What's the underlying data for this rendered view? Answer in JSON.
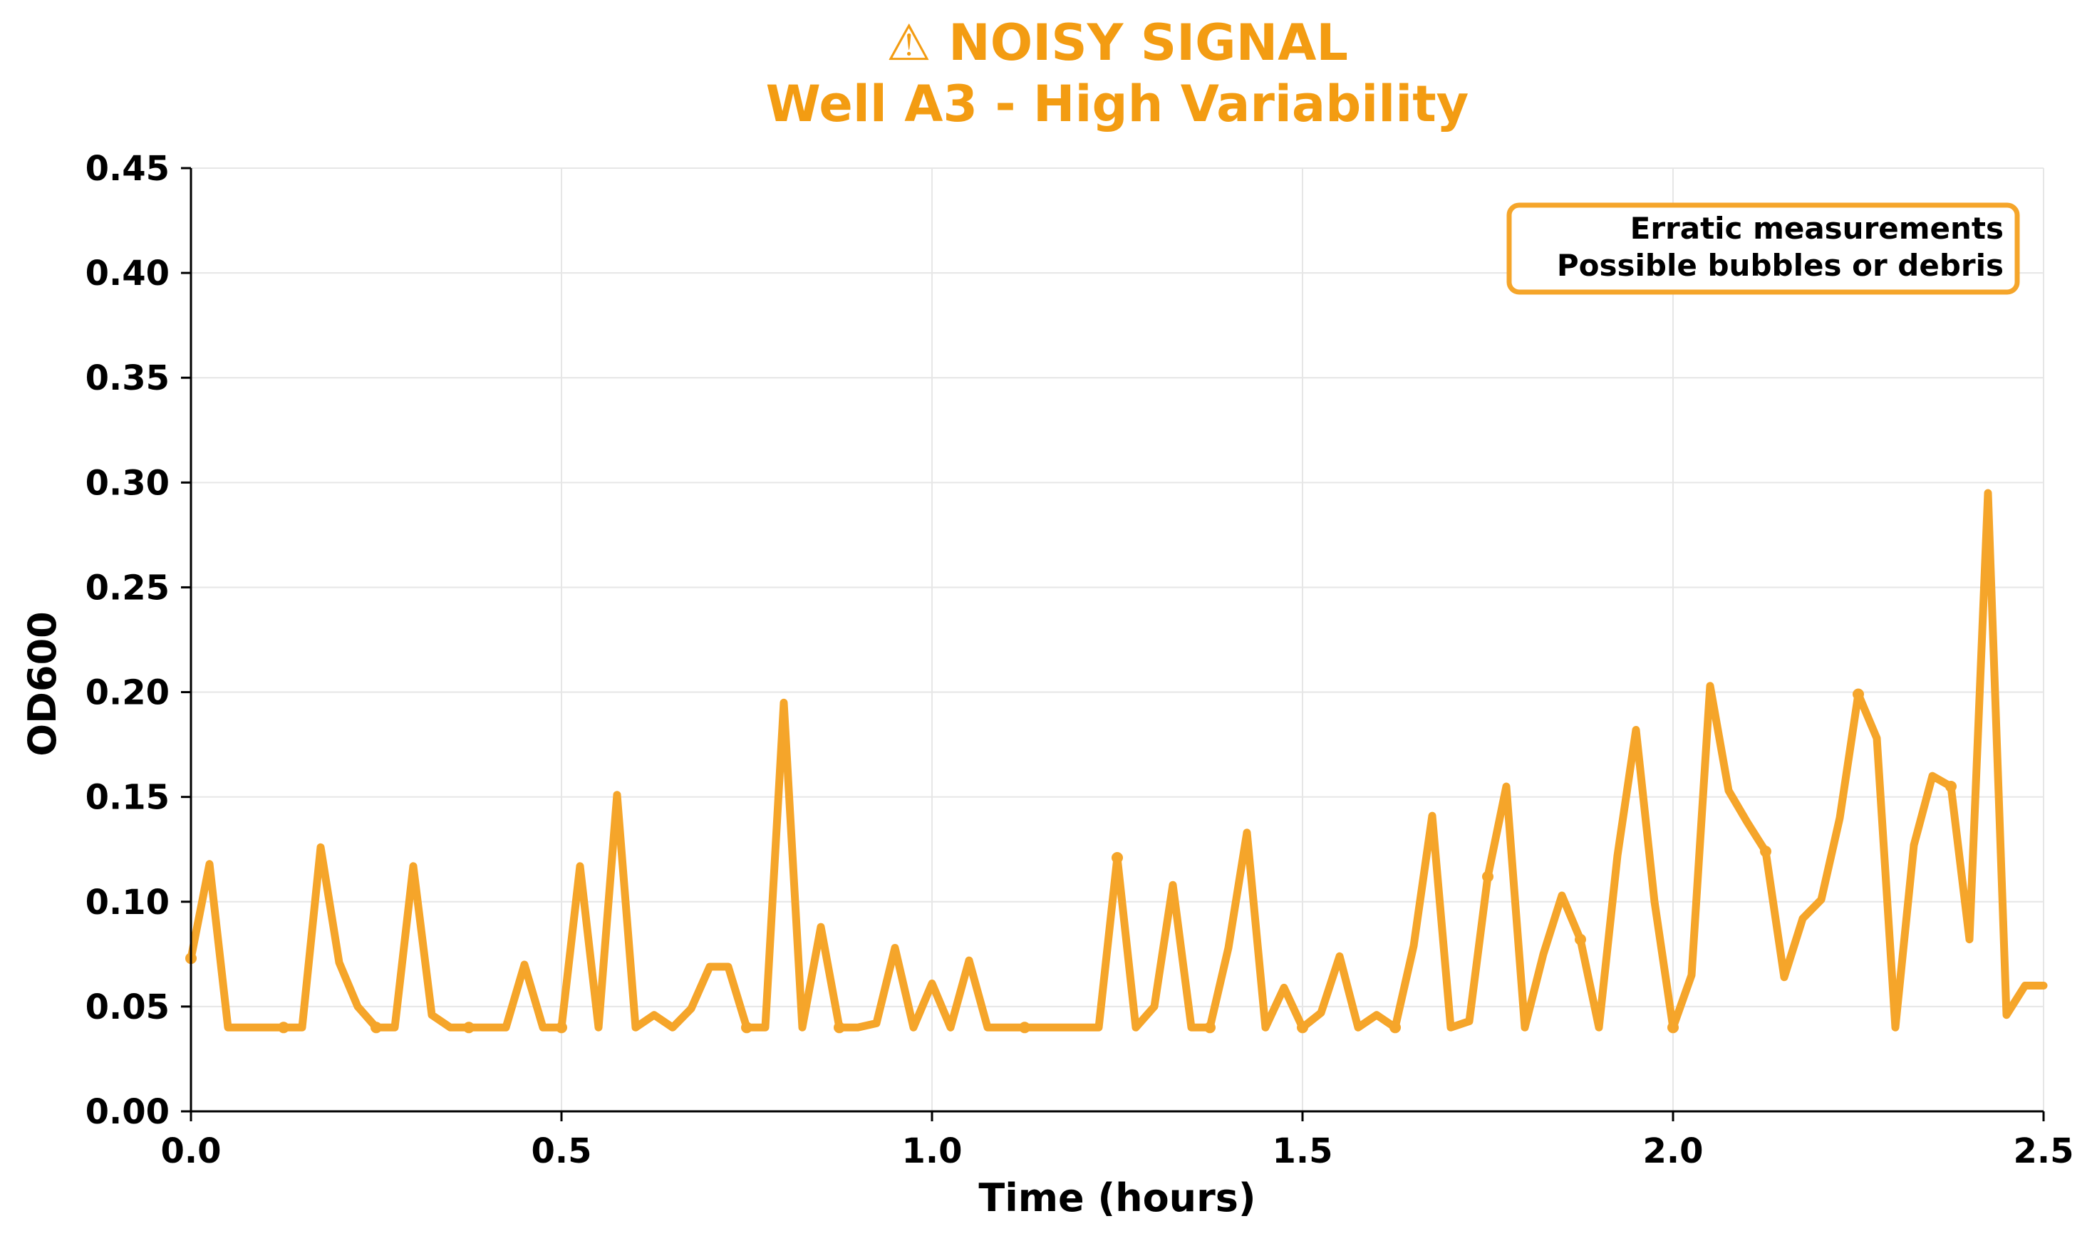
{
  "colors": {
    "line": "#F5A52A",
    "title": "#F39C12",
    "grid": "#e6e6e6",
    "annotation_border": "#F5A52A"
  },
  "chart_data": {
    "type": "line",
    "title_line1": "⚠ NOISY SIGNAL",
    "title_line2": "Well A3 - High Variability",
    "xlabel": "Time (hours)",
    "ylabel": "OD600",
    "xlim": [
      0,
      2.5
    ],
    "ylim": [
      0,
      0.45
    ],
    "xticks": [
      0,
      0.5,
      1.0,
      1.5,
      2.0,
      2.5
    ],
    "xtick_labels": [
      "0.0",
      "0.5",
      "1.0",
      "1.5",
      "2.0",
      "2.5"
    ],
    "yticks": [
      0,
      0.05,
      0.1,
      0.15,
      0.2,
      0.25,
      0.3,
      0.35,
      0.4,
      0.45
    ],
    "ytick_labels": [
      "0.00",
      "0.05",
      "0.10",
      "0.15",
      "0.20",
      "0.25",
      "0.30",
      "0.35",
      "0.40",
      "0.45"
    ],
    "grid": true,
    "annotation": {
      "lines": [
        "Erratic measurements",
        "Possible bubbles or debris"
      ],
      "placement": "top-right"
    },
    "x": [
      0.0,
      0.025,
      0.05,
      0.075,
      0.1,
      0.125,
      0.15,
      0.175,
      0.2,
      0.225,
      0.25,
      0.275,
      0.3,
      0.325,
      0.35,
      0.375,
      0.4,
      0.425,
      0.45,
      0.475,
      0.5,
      0.525,
      0.55,
      0.575,
      0.6,
      0.625,
      0.65,
      0.675,
      0.7,
      0.725,
      0.75,
      0.775,
      0.8,
      0.825,
      0.85,
      0.875,
      0.9,
      0.925,
      0.95,
      0.975,
      1.0,
      1.025,
      1.05,
      1.075,
      1.1,
      1.125,
      1.15,
      1.175,
      1.2,
      1.225,
      1.25,
      1.275,
      1.3,
      1.325,
      1.35,
      1.375,
      1.4,
      1.425,
      1.45,
      1.475,
      1.5,
      1.525,
      1.55,
      1.575,
      1.6,
      1.625,
      1.65,
      1.675,
      1.7,
      1.725,
      1.75,
      1.775,
      1.8,
      1.825,
      1.85,
      1.875,
      1.9,
      1.925,
      1.95,
      1.975,
      2.0,
      2.025,
      2.05,
      2.075,
      2.1,
      2.125,
      2.15,
      2.175,
      2.2,
      2.225,
      2.25,
      2.275,
      2.3,
      2.325,
      2.35,
      2.375,
      2.4,
      2.425,
      2.45,
      2.475,
      2.5
    ],
    "y": [
      0.073,
      0.118,
      0.04,
      0.04,
      0.04,
      0.04,
      0.04,
      0.126,
      0.071,
      0.05,
      0.04,
      0.04,
      0.117,
      0.046,
      0.04,
      0.04,
      0.04,
      0.04,
      0.07,
      0.04,
      0.04,
      0.117,
      0.04,
      0.151,
      0.04,
      0.046,
      0.04,
      0.049,
      0.069,
      0.069,
      0.04,
      0.04,
      0.195,
      0.04,
      0.088,
      0.04,
      0.04,
      0.042,
      0.078,
      0.04,
      0.061,
      0.04,
      0.072,
      0.04,
      0.04,
      0.04,
      0.04,
      0.04,
      0.04,
      0.04,
      0.121,
      0.04,
      0.05,
      0.108,
      0.04,
      0.04,
      0.078,
      0.133,
      0.04,
      0.059,
      0.04,
      0.047,
      0.074,
      0.04,
      0.046,
      0.04,
      0.079,
      0.141,
      0.04,
      0.043,
      0.112,
      0.155,
      0.04,
      0.075,
      0.103,
      0.082,
      0.04,
      0.122,
      0.182,
      0.1,
      0.04,
      0.065,
      0.203,
      0.153,
      0.138,
      0.124,
      0.064,
      0.092,
      0.101,
      0.14,
      0.199,
      0.178,
      0.04,
      0.127,
      0.16,
      0.155,
      0.082,
      0.295,
      0.046,
      0.06,
      0.06
    ],
    "marker_indices": [
      0,
      5,
      10,
      15,
      20,
      30,
      35,
      45,
      50,
      55,
      60,
      65,
      70,
      75,
      80,
      85,
      90,
      95
    ]
  }
}
